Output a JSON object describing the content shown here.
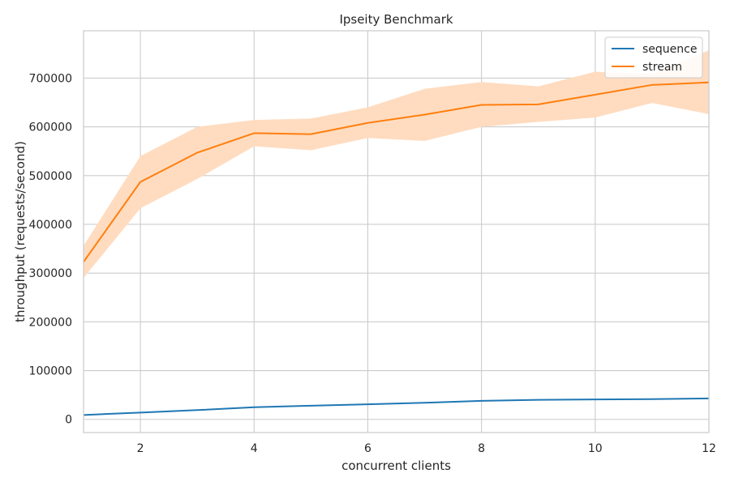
{
  "chart_data": {
    "type": "line",
    "title": "Ipseity Benchmark",
    "xlabel": "concurrent clients",
    "ylabel": "throughput (requests/second)",
    "xlim": [
      1,
      12
    ],
    "ylim": [
      -27000,
      797000
    ],
    "xticks": [
      2,
      4,
      6,
      8,
      10,
      12
    ],
    "yticks": [
      0,
      100000,
      200000,
      300000,
      400000,
      500000,
      600000,
      700000
    ],
    "grid": true,
    "legend_position": "top-right",
    "x": [
      1,
      2,
      3,
      4,
      5,
      6,
      7,
      8,
      9,
      10,
      11,
      12
    ],
    "series": [
      {
        "name": "sequence",
        "color": "#1f77b4",
        "values": [
          9000,
          14000,
          19000,
          25000,
          28000,
          31000,
          34000,
          38000,
          40000,
          41000,
          41500,
          43000
        ]
      },
      {
        "name": "stream",
        "color": "#ff7f0e",
        "band_color": "#ffdcc0",
        "values": [
          323000,
          487000,
          547000,
          587000,
          585000,
          608000,
          625000,
          645000,
          646000,
          666000,
          686000,
          691000
        ],
        "lower": [
          290000,
          433000,
          493000,
          560000,
          552000,
          577000,
          571000,
          600000,
          610000,
          619000,
          649000,
          626000
        ],
        "upper": [
          356000,
          540000,
          600000,
          614000,
          617000,
          640000,
          678000,
          692000,
          683000,
          713000,
          708000,
          757000
        ]
      }
    ]
  }
}
